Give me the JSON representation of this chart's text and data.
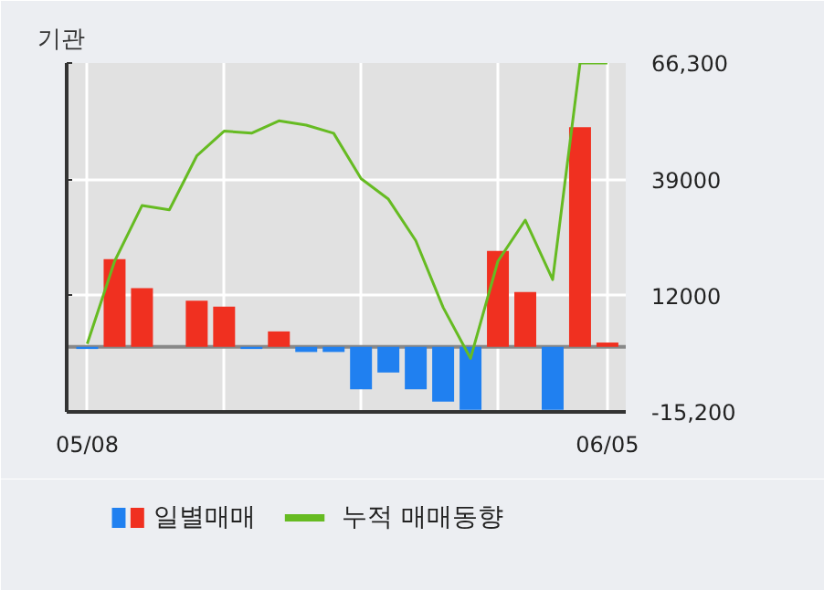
{
  "chart_data": {
    "type": "bar",
    "title": "기관",
    "categories": [
      "05/08",
      null,
      null,
      null,
      null,
      null,
      null,
      null,
      null,
      null,
      null,
      null,
      null,
      null,
      null,
      null,
      null,
      null,
      null,
      "06/05"
    ],
    "series": [
      {
        "name": "일별매매",
        "colors": [
          "#2080f0",
          "#f03020",
          "#f03020",
          "#f03020",
          "#f03020",
          "#f03020",
          "#2080f0",
          "#f03020",
          "#2080f0",
          "#2080f0",
          "#2080f0",
          "#2080f0",
          "#2080f0",
          "#2080f0",
          "#2080f0",
          "#f03020",
          "#f03020",
          "#2080f0",
          "#f03020",
          "#f03020"
        ],
        "values": [
          -500,
          20500,
          13700,
          0,
          10800,
          9400,
          -500,
          3600,
          -1200,
          -1200,
          -9900,
          -6000,
          -9900,
          -12800,
          -14700,
          22400,
          12800,
          -14700,
          51300,
          1000
        ]
      },
      {
        "name": "누적 매매동향",
        "type": "line",
        "color": "#66bb22",
        "values": [
          700,
          20000,
          33000,
          32000,
          44600,
          50400,
          49900,
          52800,
          51800,
          49900,
          39300,
          34500,
          24800,
          9200,
          -2700,
          20000,
          29600,
          15700,
          66300,
          66300
        ]
      }
    ],
    "ylim": [
      -15200,
      66300
    ],
    "yticks": [
      {
        "value": 66300,
        "label": "66,300"
      },
      39000,
      12000,
      {
        "value": -15200,
        "label": "-15,200"
      }
    ],
    "grid": true,
    "legend": "bottom",
    "ref_lines": [
      {
        "axis": "y",
        "value": 0,
        "color": "#888888"
      }
    ]
  }
}
